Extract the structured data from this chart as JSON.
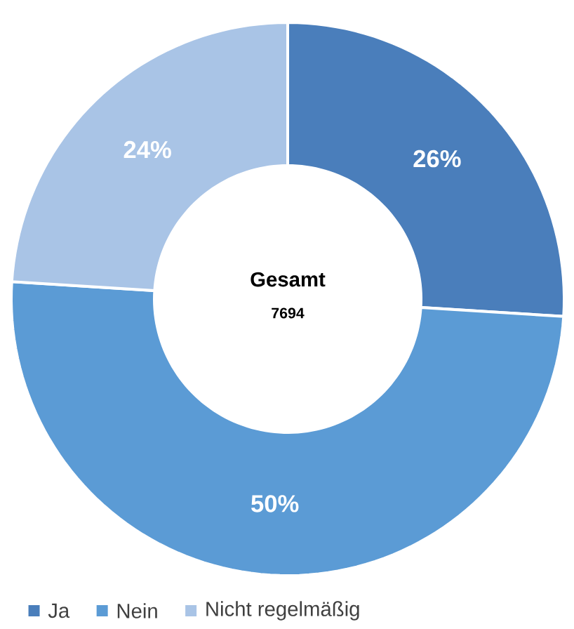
{
  "chart_data": {
    "type": "donut",
    "categories": [
      "Ja",
      "Nein",
      "Nicht regelmäßig"
    ],
    "values": [
      26,
      50,
      24
    ],
    "colors": [
      "#4a7ebb",
      "#5b9bd5",
      "#a9c4e6"
    ],
    "value_labels": [
      "26%",
      "50%",
      "24%"
    ],
    "annotations": [
      "Gesamt",
      "7694"
    ],
    "legend": "bottom"
  }
}
